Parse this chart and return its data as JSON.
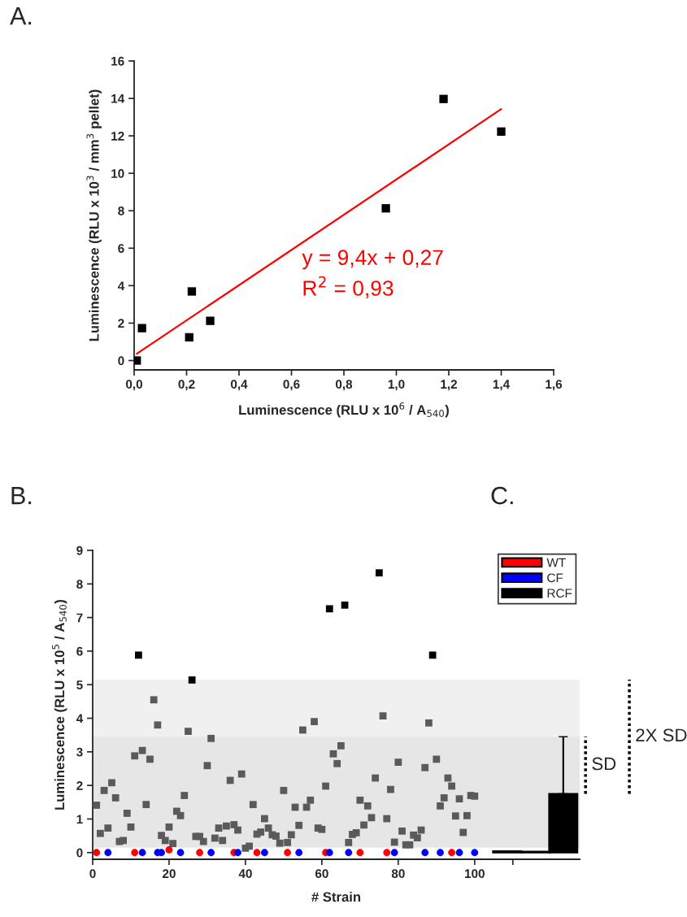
{
  "chart_data": [
    {
      "type": "scatter",
      "title": "A.",
      "xlabel": "Luminescence (RLU x 10$^{6}$ / A$_{540}$)",
      "ylabel": "Luminescence (RLU x 10$^{3}$ / mm$^{3}$ pellet)",
      "xlim": [
        0,
        1.6
      ],
      "xticks": [
        {
          "value": 0,
          "label": "0,0"
        },
        {
          "value": 0.2,
          "label": "0,2"
        },
        {
          "value": 0.4,
          "label": "0,4"
        },
        {
          "value": 0.6,
          "label": "0,6"
        },
        {
          "value": 0.8,
          "label": "0,8"
        },
        {
          "value": 1.0,
          "label": "1,0"
        },
        {
          "value": 1.2,
          "label": "1,2"
        },
        {
          "value": 1.4,
          "label": "1,4"
        },
        {
          "value": 1.6,
          "label": "1,6"
        }
      ],
      "ylim": [
        -0.5,
        16
      ],
      "yticks": [
        0,
        2,
        4,
        6,
        8,
        10,
        12,
        14,
        16
      ],
      "series": [
        {
          "color": "#000000",
          "marker": "square",
          "x": [
            0.01,
            0.03,
            0.21,
            0.22,
            0.29,
            0.96,
            1.18,
            1.4
          ],
          "values": [
            0.0,
            1.73,
            1.24,
            3.69,
            2.12,
            8.13,
            13.97,
            12.23
          ]
        },
        {
          "type": "line",
          "color": "#ff0000",
          "line_style": "solid",
          "x": [
            0.01,
            1.4
          ],
          "values": [
            0.36,
            13.43
          ]
        }
      ],
      "annotations": [
        "y = 9,4x + 0,27",
        "R$^{2}$ = 0,93"
      ]
    },
    {
      "type": "scatter",
      "title": "B.",
      "subtitle": "C.",
      "xlabel": "# Strain",
      "ylabel": "Luminescence (RLU x 10$^{5}$ / A$_{540}$)",
      "xlim": [
        0,
        127.5
      ],
      "xticks": [
        0,
        20,
        40,
        60,
        80,
        100,
        {
          "value": 110,
          "label": null
        }
      ],
      "ylim": [
        -0.2,
        9
      ],
      "yticks": [
        0,
        1,
        2,
        3,
        4,
        5,
        6,
        7,
        8,
        9
      ],
      "legend": "top right",
      "bands": [
        {
          "axis": "y",
          "from": 0.15,
          "to": 5.15,
          "color": "#f0f0f0"
        },
        {
          "axis": "y",
          "from": 0.15,
          "to": 3.45,
          "color": "#e6e6e6"
        }
      ],
      "series": [
        {
          "color": "#5a5a5a",
          "marker": "square",
          "x": [
            1,
            2,
            3,
            4,
            5,
            6,
            7,
            8,
            9,
            10,
            11,
            13,
            14,
            15,
            16,
            17,
            18,
            19,
            20,
            21,
            22,
            23,
            24,
            25,
            27,
            28,
            29,
            30,
            31,
            32,
            33,
            34,
            35,
            36,
            37,
            38,
            39,
            40,
            41,
            42,
            43,
            44,
            45,
            46,
            47,
            48,
            49,
            50,
            51,
            52,
            53,
            54,
            55,
            56,
            57,
            58,
            59,
            60,
            61,
            63,
            64,
            65,
            67,
            68,
            69,
            70,
            71,
            72,
            73,
            74,
            76,
            77,
            78,
            79,
            80,
            81,
            82,
            83,
            84,
            85,
            86,
            87,
            88,
            90,
            91,
            92,
            93,
            94,
            95,
            96,
            97,
            98,
            99,
            100
          ],
          "values": [
            1.41,
            0.57,
            1.85,
            0.73,
            2.08,
            1.63,
            0.33,
            0.36,
            1.17,
            0.76,
            2.88,
            3.04,
            1.43,
            2.78,
            4.55,
            3.8,
            0.51,
            0.36,
            0.76,
            0.27,
            1.23,
            1.1,
            1.7,
            3.61,
            0.48,
            0.48,
            0.33,
            2.59,
            3.4,
            0.43,
            0.73,
            0.36,
            0.79,
            2.15,
            0.83,
            0.67,
            2.34,
            0.13,
            0.19,
            1.43,
            0.55,
            0.61,
            1.01,
            0.73,
            0.53,
            0.49,
            0.28,
            1.85,
            0.3,
            0.53,
            1.35,
            0.81,
            3.65,
            1.35,
            1.56,
            3.9,
            0.73,
            0.69,
            1.98,
            2.94,
            2.65,
            3.18,
            0.3,
            0.54,
            0.59,
            1.56,
            0.82,
            1.39,
            1.04,
            2.22,
            4.07,
            1.01,
            1.88,
            0.31,
            2.69,
            0.64,
            0.23,
            0.23,
            0.52,
            0.44,
            0.67,
            2.53,
            3.86,
            2.78,
            1.39,
            1.63,
            2.22,
            1.98,
            1.09,
            1.6,
            0.6,
            1.1,
            1.7,
            1.68
          ]
        },
        {
          "color": "#000000",
          "marker": "square",
          "x": [
            12,
            26,
            62,
            66,
            75,
            89
          ],
          "values": [
            5.88,
            5.14,
            7.26,
            7.37,
            8.33,
            5.88
          ]
        },
        {
          "color": "#ff0000",
          "marker": "circle",
          "x": [
            1,
            11,
            20,
            28,
            37,
            43,
            51,
            61,
            70,
            77,
            94
          ],
          "values": [
            0,
            0,
            0.08,
            0,
            0,
            0,
            0,
            0,
            0,
            0,
            0
          ]
        },
        {
          "color": "#0000ff",
          "marker": "circle",
          "x": [
            4,
            13,
            17,
            18,
            23,
            31,
            38,
            45,
            54,
            62,
            67,
            79,
            87,
            91,
            96,
            100
          ],
          "values": [
            0,
            0,
            0,
            0,
            0,
            0,
            0,
            0,
            0,
            0,
            0,
            0,
            0,
            0,
            0,
            0
          ]
        },
        {
          "type": "bar",
          "name": "WT",
          "color": "#ff0000",
          "x": [
            108.5
          ],
          "values": [
            0.04
          ]
        },
        {
          "type": "bar",
          "name": "CF",
          "color": "#0000ff",
          "x": [
            116
          ],
          "values": [
            0.03
          ]
        },
        {
          "type": "bar",
          "name": "RCF",
          "color": "#000000",
          "x": [
            123.2
          ],
          "values": [
            1.75
          ],
          "errors": [
            [
              1.75,
              3.45
            ]
          ]
        }
      ],
      "annotations": [
        "SD",
        "2X SD"
      ]
    }
  ]
}
